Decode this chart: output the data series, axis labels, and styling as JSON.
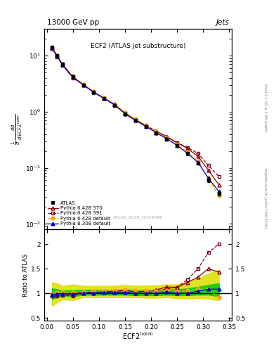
{
  "title_top": "13000 GeV pp",
  "title_right": "Jets",
  "plot_title": "ECF2 (ATLAS jet substructure)",
  "watermark": "ATLAS_2019_I1724098",
  "xlabel": "ECF2$^{\\rm norm}$",
  "ylabel_main_parts": [
    "$\\frac{1}{\\sigma}$",
    "$\\frac{d\\sigma}{d\\,{\\rm ECF2}^{\\rm norm}}$"
  ],
  "ylabel_ratio": "Ratio to ATLAS",
  "right_label": "mcplots.cern.ch [arXiv:1306.3436]",
  "right_label2": "Rivet 3.1.10; ≥ 3.3M events",
  "x": [
    0.01,
    0.02,
    0.03,
    0.05,
    0.07,
    0.09,
    0.11,
    0.13,
    0.15,
    0.17,
    0.19,
    0.21,
    0.23,
    0.25,
    0.27,
    0.29,
    0.31,
    0.33
  ],
  "atlas_y": [
    14.0,
    10.0,
    7.0,
    4.2,
    3.0,
    2.2,
    1.7,
    1.3,
    0.9,
    0.7,
    0.55,
    0.42,
    0.32,
    0.25,
    0.18,
    0.12,
    0.06,
    0.035
  ],
  "atlas_yerr": [
    0.5,
    0.3,
    0.2,
    0.15,
    0.1,
    0.08,
    0.06,
    0.05,
    0.04,
    0.03,
    0.02,
    0.015,
    0.012,
    0.01,
    0.008,
    0.006,
    0.004,
    0.003
  ],
  "py6_370_y": [
    13.5,
    9.8,
    6.9,
    4.1,
    3.05,
    2.25,
    1.75,
    1.35,
    0.95,
    0.72,
    0.57,
    0.45,
    0.36,
    0.28,
    0.22,
    0.16,
    0.09,
    0.05
  ],
  "py6_391_y": [
    13.2,
    9.5,
    6.7,
    4.0,
    3.0,
    2.2,
    1.72,
    1.32,
    0.92,
    0.7,
    0.55,
    0.44,
    0.35,
    0.28,
    0.23,
    0.18,
    0.11,
    0.07
  ],
  "py6_def_y": [
    13.8,
    10.1,
    7.1,
    4.3,
    3.1,
    2.3,
    1.78,
    1.38,
    0.97,
    0.74,
    0.58,
    0.44,
    0.34,
    0.26,
    0.19,
    0.13,
    0.065,
    0.032
  ],
  "py8_def_y": [
    13.6,
    9.9,
    6.95,
    4.15,
    3.02,
    2.22,
    1.72,
    1.32,
    0.92,
    0.7,
    0.55,
    0.42,
    0.33,
    0.25,
    0.18,
    0.125,
    0.065,
    0.038
  ],
  "ratio_py6_370": [
    0.96,
    0.98,
    0.99,
    0.98,
    1.02,
    1.02,
    1.03,
    1.04,
    1.06,
    1.03,
    1.04,
    1.07,
    1.13,
    1.12,
    1.22,
    1.33,
    1.5,
    1.43
  ],
  "ratio_py6_391": [
    0.94,
    0.95,
    0.96,
    0.95,
    1.0,
    1.0,
    1.01,
    1.015,
    1.02,
    1.0,
    1.0,
    1.05,
    1.09,
    1.12,
    1.28,
    1.5,
    1.83,
    2.0
  ],
  "ratio_py6_def": [
    0.99,
    1.01,
    1.01,
    1.02,
    1.03,
    1.045,
    1.047,
    1.062,
    1.078,
    1.057,
    1.055,
    1.048,
    1.063,
    1.04,
    1.056,
    1.083,
    1.083,
    0.914
  ],
  "ratio_py8_def": [
    0.97,
    0.99,
    0.993,
    0.988,
    1.007,
    1.009,
    1.012,
    1.015,
    1.022,
    1.0,
    1.0,
    1.0,
    1.031,
    1.0,
    1.0,
    1.042,
    1.083,
    1.086
  ],
  "band_green_lo": [
    0.88,
    0.92,
    0.95,
    0.94,
    0.97,
    0.97,
    0.97,
    0.97,
    0.97,
    0.96,
    0.96,
    0.96,
    0.97,
    0.96,
    0.96,
    0.97,
    0.97,
    0.94
  ],
  "band_green_hi": [
    1.1,
    1.08,
    1.05,
    1.06,
    1.07,
    1.07,
    1.07,
    1.07,
    1.08,
    1.07,
    1.07,
    1.07,
    1.08,
    1.08,
    1.1,
    1.13,
    1.17,
    1.2
  ],
  "band_yellow_lo": [
    0.75,
    0.82,
    0.88,
    0.86,
    0.92,
    0.92,
    0.92,
    0.92,
    0.92,
    0.92,
    0.91,
    0.91,
    0.92,
    0.9,
    0.9,
    0.9,
    0.89,
    0.86
  ],
  "band_yellow_hi": [
    1.22,
    1.2,
    1.15,
    1.18,
    1.15,
    1.15,
    1.15,
    1.15,
    1.17,
    1.15,
    1.16,
    1.16,
    1.18,
    1.18,
    1.24,
    1.3,
    1.4,
    1.48
  ],
  "color_atlas": "#000000",
  "color_py6_370": "#8B0000",
  "color_py6_391": "#800020",
  "color_py6_def": "#FFA500",
  "color_py8_def": "#0000CD",
  "color_green": "#00CC00",
  "color_yellow": "#DDDD00",
  "ylim_main": [
    0.008,
    30
  ],
  "ylim_ratio": [
    0.45,
    2.3
  ],
  "xlim": [
    -0.005,
    0.355
  ]
}
